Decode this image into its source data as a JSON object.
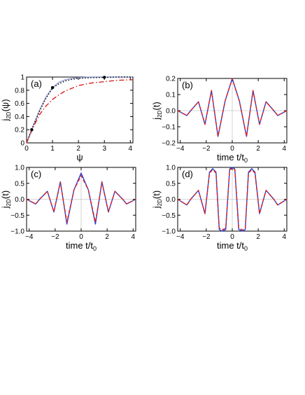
{
  "chart_data": [
    {
      "type": "line",
      "panel_label": "(a)",
      "xlabel": "ψ",
      "ylabel": "j",
      "ylabel_sub": "2D",
      "ylabel_tail": "(ψ)",
      "xlim": [
        0,
        4.1
      ],
      "ylim": [
        0,
        1.0
      ],
      "xticks": [
        0,
        1,
        2,
        3,
        4
      ],
      "yticks": [
        0,
        0.2,
        0.4,
        0.6,
        0.8,
        1
      ],
      "xtick_labels": [
        "0",
        "1",
        "2",
        "3",
        "4"
      ],
      "ytick_labels": [
        "0",
        "0.2",
        "0.4",
        "0.6",
        "0.8",
        "1"
      ],
      "points": [
        {
          "x": 0.2,
          "y": 0.2
        },
        {
          "x": 1.0,
          "y": 0.84
        },
        {
          "x": 3.0,
          "y": 0.995
        }
      ],
      "series": [
        {
          "style": "solid",
          "color": "#99a3d6",
          "x": [
            0,
            0.25,
            0.5,
            0.75,
            1,
            1.25,
            1.5,
            1.75,
            2,
            2.5,
            3,
            3.5,
            4.1
          ],
          "y": [
            0,
            0.26,
            0.5,
            0.7,
            0.84,
            0.92,
            0.96,
            0.98,
            0.99,
            1,
            1,
            1,
            1
          ]
        },
        {
          "style": "dotted",
          "color": "#000000",
          "x": [
            0,
            0.25,
            0.5,
            0.75,
            1,
            1.25,
            1.5,
            1.75,
            2,
            2.5,
            3,
            3.5,
            4.1
          ],
          "y": [
            0,
            0.25,
            0.48,
            0.68,
            0.83,
            0.9,
            0.94,
            0.965,
            0.98,
            0.99,
            0.995,
            1,
            1
          ]
        },
        {
          "style": "dashdot",
          "color": "#dd1f1f",
          "x": [
            0,
            0.25,
            0.5,
            0.75,
            1,
            1.25,
            1.5,
            1.75,
            2,
            2.5,
            3,
            3.5,
            4.1
          ],
          "y": [
            0,
            0.23,
            0.43,
            0.56,
            0.66,
            0.73,
            0.79,
            0.83,
            0.87,
            0.91,
            0.93,
            0.95,
            0.96
          ]
        }
      ]
    },
    {
      "type": "line",
      "panel_label": "(b)",
      "xlabel": "time t/t",
      "xlabel_sub": "0",
      "ylabel": "j",
      "ylabel_sub": "2D",
      "ylabel_tail": "(t)",
      "xlim": [
        -4.2,
        4.2
      ],
      "ylim": [
        -0.2,
        0.2
      ],
      "xticks": [
        -4,
        -2,
        0,
        2,
        4
      ],
      "yticks": [
        -0.2,
        -0.1,
        0,
        0.1,
        0.2
      ],
      "xtick_labels": [
        "−4",
        "−2",
        "0",
        "2",
        "4"
      ],
      "ytick_labels": [
        "−0.2",
        "−0.1",
        "0.0",
        "0.1",
        "0.2"
      ],
      "series": [
        {
          "style": "solid",
          "color": "#2a3fd6",
          "x": [
            -4.2,
            -3.5,
            -3.2,
            -2.6,
            -2.1,
            -1.6,
            -1.1,
            -0.55,
            0,
            0.55,
            1.1,
            1.6,
            2.1,
            2.6,
            3.2,
            3.5,
            4.2
          ],
          "y": [
            0,
            -0.03,
            0.0,
            0.055,
            -0.085,
            0.125,
            -0.16,
            0.06,
            0.2,
            0.06,
            -0.16,
            0.125,
            -0.085,
            0.055,
            0.0,
            -0.03,
            0
          ]
        },
        {
          "style": "dashed",
          "color": "#dd1f1f",
          "x": [
            -4.2,
            -3.5,
            -3.2,
            -2.6,
            -2.1,
            -1.6,
            -1.1,
            -0.55,
            0,
            0.55,
            1.1,
            1.6,
            2.1,
            2.6,
            3.2,
            3.5,
            4.2
          ],
          "y": [
            0,
            -0.03,
            0.0,
            0.055,
            -0.085,
            0.125,
            -0.16,
            0.06,
            0.198,
            0.06,
            -0.16,
            0.125,
            -0.085,
            0.055,
            0.0,
            -0.03,
            0
          ]
        }
      ]
    },
    {
      "type": "line",
      "panel_label": "(c)",
      "xlabel": "time t/t",
      "xlabel_sub": "0",
      "ylabel": "j",
      "ylabel_sub": "2D",
      "ylabel_tail": "(t)",
      "xlim": [
        -4.2,
        4.2
      ],
      "ylim": [
        -1.0,
        1.0
      ],
      "xticks": [
        -4,
        -2,
        0,
        2,
        4
      ],
      "yticks": [
        -1,
        -0.5,
        0,
        0.5,
        1
      ],
      "xtick_labels": [
        "−4",
        "−2",
        "0",
        "2",
        "4"
      ],
      "ytick_labels": [
        "−1.0",
        "−0.5",
        "0.0",
        "0.5",
        "1.0"
      ],
      "series": [
        {
          "style": "solid",
          "color": "#2a3fd6",
          "x": [
            -4.2,
            -3.5,
            -3.2,
            -2.6,
            -2.1,
            -1.6,
            -1.1,
            -0.55,
            0,
            0.55,
            1.1,
            1.6,
            2.1,
            2.6,
            3.2,
            3.5,
            4.2
          ],
          "y": [
            0,
            -0.15,
            0,
            0.25,
            -0.4,
            0.55,
            -0.78,
            0.3,
            0.82,
            0.3,
            -0.78,
            0.55,
            -0.4,
            0.25,
            0,
            -0.15,
            0
          ]
        },
        {
          "style": "dashed",
          "color": "#dd1f1f",
          "x": [
            -4.2,
            -3.5,
            -3.2,
            -2.6,
            -2.1,
            -1.6,
            -1.1,
            -0.55,
            0,
            0.55,
            1.1,
            1.6,
            2.1,
            2.6,
            3.2,
            3.5,
            4.2
          ],
          "y": [
            0,
            -0.15,
            0,
            0.25,
            -0.4,
            0.53,
            -0.72,
            0.3,
            0.74,
            0.3,
            -0.72,
            0.53,
            -0.4,
            0.25,
            0,
            -0.15,
            0
          ]
        }
      ]
    },
    {
      "type": "line",
      "panel_label": "(d)",
      "xlabel": "time t/t",
      "xlabel_sub": "0",
      "ylabel": "j",
      "ylabel_sub": "2D",
      "ylabel_tail": "(t)",
      "xlim": [
        -4.2,
        4.2
      ],
      "ylim": [
        -1.0,
        1.0
      ],
      "xticks": [
        -4,
        -2,
        0,
        2,
        4
      ],
      "yticks": [
        -1,
        -0.5,
        0,
        0.5,
        1
      ],
      "xtick_labels": [
        "−4",
        "−2",
        "0",
        "2",
        "4"
      ],
      "ytick_labels": [
        "−1.0",
        "−0.5",
        "0.0",
        "0.5",
        "1.0"
      ],
      "series": [
        {
          "style": "solid",
          "color": "#2a3fd6",
          "x": [
            -4.2,
            -3.5,
            -3.2,
            -2.6,
            -2.1,
            -1.75,
            -1.5,
            -1.25,
            -1.0,
            -0.8,
            -0.5,
            -0.2,
            0,
            0.2,
            0.5,
            0.8,
            1.0,
            1.25,
            1.5,
            1.75,
            2.1,
            2.6,
            3.2,
            3.5,
            4.2
          ],
          "y": [
            0,
            -0.18,
            0,
            0.28,
            -0.45,
            0.85,
            0.96,
            0.85,
            -0.95,
            -1.0,
            -0.95,
            0.95,
            1.0,
            0.95,
            -0.95,
            -1.0,
            -0.95,
            0.85,
            0.96,
            0.85,
            -0.45,
            0.28,
            0,
            -0.18,
            0
          ]
        },
        {
          "style": "dashed",
          "color": "#dd1f1f",
          "x": [
            -4.2,
            -3.5,
            -3.2,
            -2.6,
            -2.1,
            -1.75,
            -1.5,
            -1.25,
            -1.0,
            -0.8,
            -0.5,
            -0.2,
            0,
            0.2,
            0.5,
            0.8,
            1.0,
            1.25,
            1.5,
            1.75,
            2.1,
            2.6,
            3.2,
            3.5,
            4.2
          ],
          "y": [
            0,
            -0.18,
            0,
            0.28,
            -0.45,
            0.82,
            0.93,
            0.82,
            -0.9,
            -0.97,
            -0.9,
            0.93,
            0.97,
            0.93,
            -0.9,
            -0.97,
            -0.9,
            0.82,
            0.93,
            0.82,
            -0.45,
            0.28,
            0,
            -0.18,
            0
          ]
        }
      ]
    }
  ]
}
